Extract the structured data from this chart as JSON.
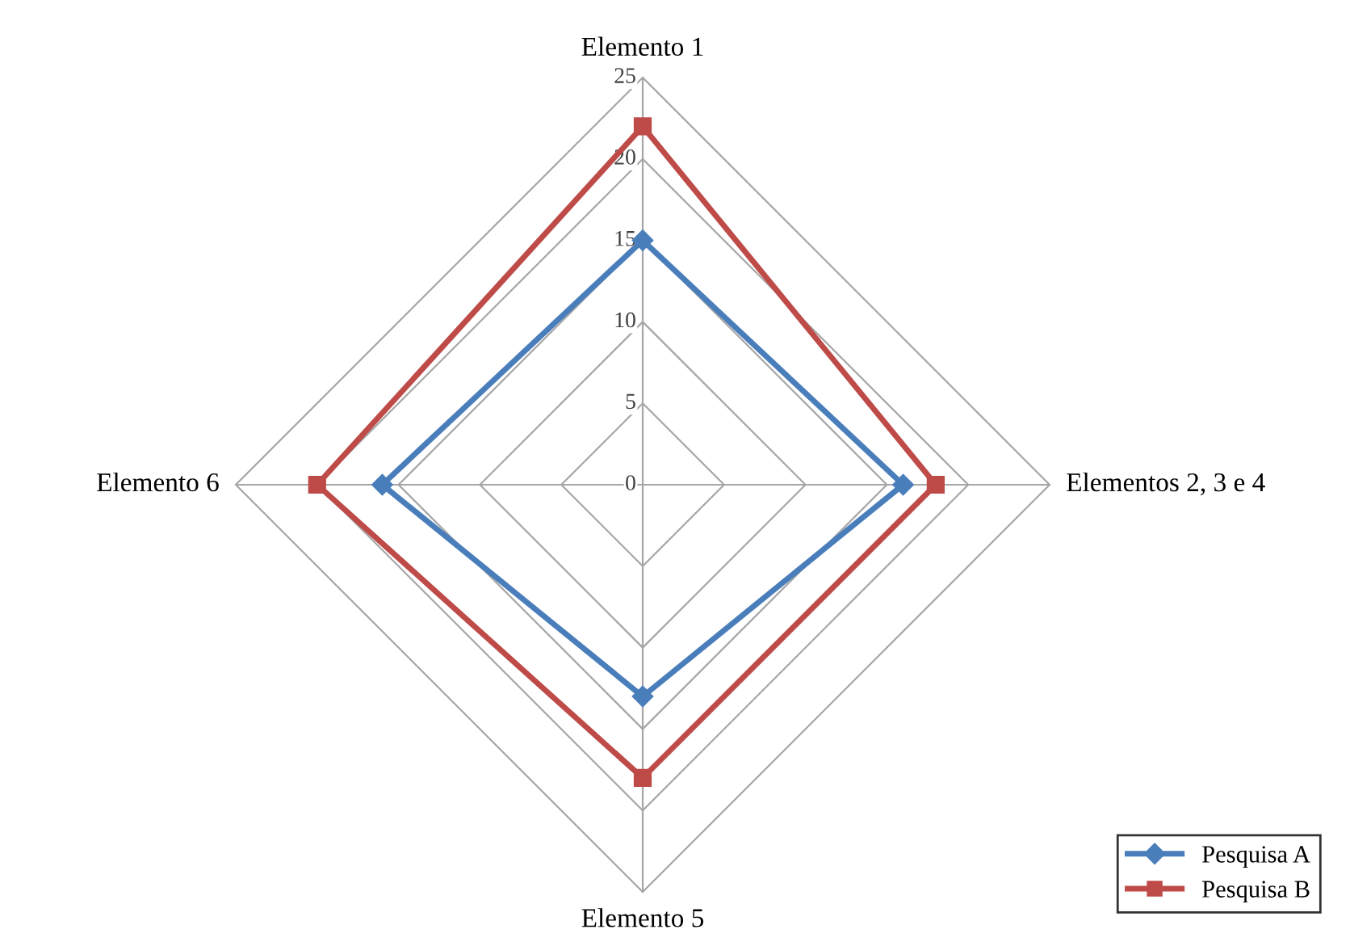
{
  "chart_data": {
    "type": "radar",
    "categories": [
      "Elemento 1",
      "Elementos 2, 3 e 4",
      "Elemento 5",
      "Elemento 6"
    ],
    "series": [
      {
        "name": "Pesquisa A",
        "color": "#4a7ebb",
        "values": [
          15,
          16,
          13,
          16
        ],
        "marker": "diamond"
      },
      {
        "name": "Pesquisa B",
        "color": "#be4b48",
        "values": [
          22,
          18,
          18,
          20
        ],
        "marker": "square"
      }
    ],
    "ylim": [
      0,
      25
    ],
    "yticks": [
      0,
      5,
      10,
      15,
      20,
      25
    ],
    "grid": true,
    "legend": "bottom right"
  }
}
